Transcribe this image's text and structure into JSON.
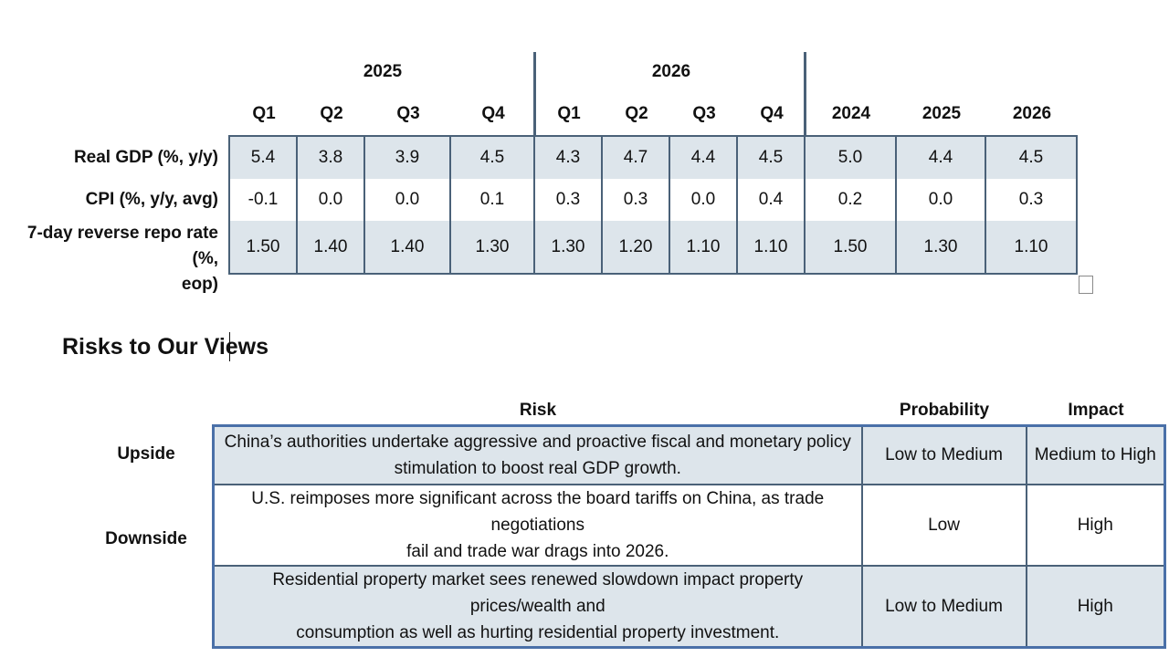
{
  "forecast": {
    "year_groups": [
      "2025",
      "2026"
    ],
    "columns": [
      "Q1",
      "Q2",
      "Q3",
      "Q4",
      "Q1",
      "Q2",
      "Q3",
      "Q4",
      "2024",
      "2025",
      "2026"
    ],
    "rows": [
      {
        "label": "Real GDP (%, y/y)",
        "values": [
          "5.4",
          "3.8",
          "3.9",
          "4.5",
          "4.3",
          "4.7",
          "4.4",
          "4.5",
          "5.0",
          "4.4",
          "4.5"
        ]
      },
      {
        "label": "CPI (%, y/y, avg)",
        "values": [
          "-0.1",
          "0.0",
          "0.0",
          "0.1",
          "0.3",
          "0.3",
          "0.0",
          "0.4",
          "0.2",
          "0.0",
          "0.3"
        ]
      },
      {
        "label_line1": "7-day reverse repo rate (%,",
        "label_line2": "eop)",
        "values": [
          "1.50",
          "1.40",
          "1.40",
          "1.30",
          "1.30",
          "1.20",
          "1.10",
          "1.10",
          "1.50",
          "1.30",
          "1.10"
        ]
      }
    ]
  },
  "risks": {
    "title": "Risks to Our Views",
    "headers": {
      "risk": "Risk",
      "probability": "Probability",
      "impact": "Impact"
    },
    "groups": {
      "upside": "Upside",
      "downside": "Downside"
    },
    "rows": [
      {
        "line1": "China’s authorities undertake aggressive and proactive fiscal and monetary policy",
        "line2": "stimulation to boost real GDP growth.",
        "probability": "Low to Medium",
        "impact": "Medium to High"
      },
      {
        "line1": "U.S. reimposes more significant across the board tariffs on China, as trade negotiations",
        "line2": "fail and trade war drags into 2026.",
        "probability": "Low",
        "impact": "High"
      },
      {
        "line1": "Residential property market sees renewed slowdown impact property prices/wealth and",
        "line2": "consumption as well as hurting residential property investment.",
        "probability": "Low to Medium",
        "impact": "High"
      }
    ]
  }
}
